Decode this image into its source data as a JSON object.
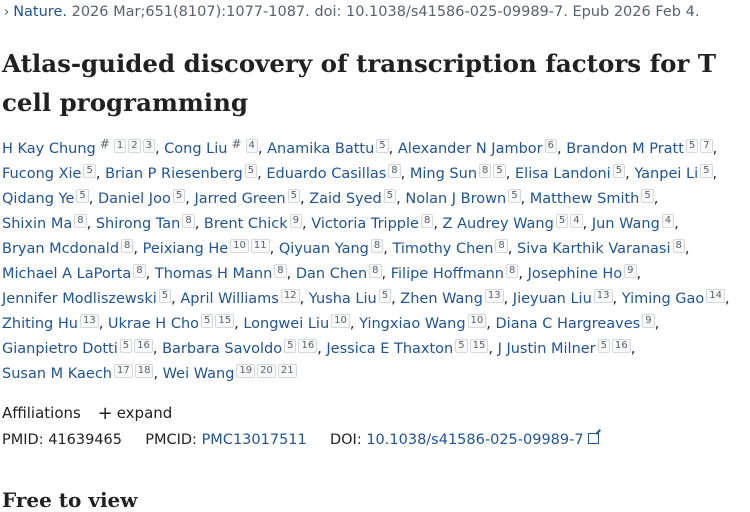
{
  "citation": {
    "chevron": "›",
    "journal": "Nature.",
    "details": " 2026 Mar;651(8107):1077-1087. doi: 10.1038/s41586-025-09989-7. Epub 2026 Feb 4."
  },
  "title": "Atlas-guided discovery of transcription factors for T cell programming",
  "authors": [
    {
      "name": "H Kay Chung",
      "sups": [
        "#",
        "1",
        "2",
        "3"
      ]
    },
    {
      "name": "Cong Liu",
      "sups": [
        "#",
        "4"
      ]
    },
    {
      "name": "Anamika Battu",
      "sups": [
        "5"
      ]
    },
    {
      "name": "Alexander N Jambor",
      "sups": [
        "6"
      ]
    },
    {
      "name": "Brandon M Pratt",
      "sups": [
        "5",
        "7"
      ]
    },
    {
      "name": "Fucong Xie",
      "sups": [
        "5"
      ]
    },
    {
      "name": "Brian P Riesenberg",
      "sups": [
        "5"
      ]
    },
    {
      "name": "Eduardo Casillas",
      "sups": [
        "8"
      ]
    },
    {
      "name": "Ming Sun",
      "sups": [
        "8",
        "5"
      ]
    },
    {
      "name": "Elisa Landoni",
      "sups": [
        "5"
      ]
    },
    {
      "name": "Yanpei Li",
      "sups": [
        "5"
      ]
    },
    {
      "name": "Qidang Ye",
      "sups": [
        "5"
      ]
    },
    {
      "name": "Daniel Joo",
      "sups": [
        "5"
      ]
    },
    {
      "name": "Jarred Green",
      "sups": [
        "5"
      ]
    },
    {
      "name": "Zaid Syed",
      "sups": [
        "5"
      ]
    },
    {
      "name": "Nolan J Brown",
      "sups": [
        "5"
      ]
    },
    {
      "name": "Matthew Smith",
      "sups": [
        "5"
      ]
    },
    {
      "name": "Shixin Ma",
      "sups": [
        "8"
      ]
    },
    {
      "name": "Shirong Tan",
      "sups": [
        "8"
      ]
    },
    {
      "name": "Brent Chick",
      "sups": [
        "9"
      ]
    },
    {
      "name": "Victoria Tripple",
      "sups": [
        "8"
      ]
    },
    {
      "name": "Z Audrey Wang",
      "sups": [
        "5",
        "4"
      ]
    },
    {
      "name": "Jun Wang",
      "sups": [
        "4"
      ]
    },
    {
      "name": "Bryan Mcdonald",
      "sups": [
        "8"
      ]
    },
    {
      "name": "Peixiang He",
      "sups": [
        "10",
        "11"
      ]
    },
    {
      "name": "Qiyuan Yang",
      "sups": [
        "8"
      ]
    },
    {
      "name": "Timothy Chen",
      "sups": [
        "8"
      ]
    },
    {
      "name": "Siva Karthik Varanasi",
      "sups": [
        "8"
      ]
    },
    {
      "name": "Michael A LaPorta",
      "sups": [
        "8"
      ]
    },
    {
      "name": "Thomas H Mann",
      "sups": [
        "8"
      ]
    },
    {
      "name": "Dan Chen",
      "sups": [
        "8"
      ]
    },
    {
      "name": "Filipe Hoffmann",
      "sups": [
        "8"
      ]
    },
    {
      "name": "Josephine Ho",
      "sups": [
        "9"
      ]
    },
    {
      "name": "Jennifer Modliszewski",
      "sups": [
        "5"
      ]
    },
    {
      "name": "April Williams",
      "sups": [
        "12"
      ]
    },
    {
      "name": "Yusha Liu",
      "sups": [
        "5"
      ]
    },
    {
      "name": "Zhen Wang",
      "sups": [
        "13"
      ]
    },
    {
      "name": "Jieyuan Liu",
      "sups": [
        "13"
      ]
    },
    {
      "name": "Yiming Gao",
      "sups": [
        "14"
      ]
    },
    {
      "name": "Zhiting Hu",
      "sups": [
        "13"
      ]
    },
    {
      "name": "Ukrae H Cho",
      "sups": [
        "5",
        "15"
      ]
    },
    {
      "name": "Longwei Liu",
      "sups": [
        "10"
      ]
    },
    {
      "name": "Yingxiao Wang",
      "sups": [
        "10"
      ]
    },
    {
      "name": "Diana C Hargreaves",
      "sups": [
        "9"
      ]
    },
    {
      "name": "Gianpietro Dotti",
      "sups": [
        "5",
        "16"
      ]
    },
    {
      "name": "Barbara Savoldo",
      "sups": [
        "5",
        "16"
      ]
    },
    {
      "name": "Jessica E Thaxton",
      "sups": [
        "5",
        "15"
      ]
    },
    {
      "name": "J Justin Milner",
      "sups": [
        "5",
        "16"
      ]
    },
    {
      "name": "Susan M Kaech",
      "sups": [
        "17",
        "18"
      ]
    },
    {
      "name": "Wei Wang",
      "sups": [
        "19",
        "20",
        "21"
      ]
    }
  ],
  "affiliations": {
    "label": "Affiliations",
    "expand_icon": "+",
    "expand_label": "expand"
  },
  "ids": {
    "pmid_label": "PMID:",
    "pmid_value": "41639465",
    "pmcid_label": "PMCID:",
    "pmcid_value": "PMC13017511",
    "doi_label": "DOI:",
    "doi_value": "10.1038/s41586-025-09989-7",
    "external_icon": "external-link-icon"
  },
  "next_section": "Free to view"
}
